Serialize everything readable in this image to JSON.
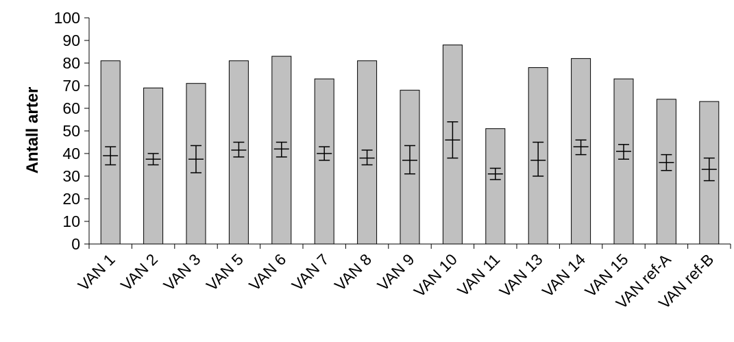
{
  "chart_data": {
    "type": "bar",
    "title": "",
    "xlabel": "",
    "ylabel": "Antall arter",
    "ylim": [
      0,
      100
    ],
    "yticks": [
      0,
      10,
      20,
      30,
      40,
      50,
      60,
      70,
      80,
      90,
      100
    ],
    "grid": false,
    "legend": "none",
    "bar_color": "#c0c0c0",
    "categories": [
      "VAN 1",
      "VAN 2",
      "VAN 3",
      "VAN 5",
      "VAN 6",
      "VAN 7",
      "VAN 8",
      "VAN 9",
      "VAN 10",
      "VAN 11",
      "VAN 13",
      "VAN 14",
      "VAN 15",
      "VAN ref-A",
      "VAN ref-B"
    ],
    "series": [
      {
        "values": [
          81,
          69,
          71,
          81,
          83,
          73,
          81,
          68,
          88,
          51,
          78,
          82,
          73,
          64,
          63
        ]
      },
      {
        "type": "mean_with_error",
        "values": [
          39,
          37.5,
          37.5,
          41.5,
          42,
          40,
          38,
          37,
          46,
          31,
          37,
          43,
          41,
          36,
          33
        ],
        "error_low": [
          35,
          35,
          31.5,
          38.5,
          38.5,
          37,
          35,
          31,
          38,
          28.5,
          30,
          39.5,
          37.5,
          32.5,
          28
        ],
        "error_high": [
          43,
          40,
          43.5,
          45,
          45,
          43,
          41.5,
          43.5,
          54,
          33.5,
          45,
          46,
          44,
          39.5,
          38
        ]
      }
    ]
  }
}
